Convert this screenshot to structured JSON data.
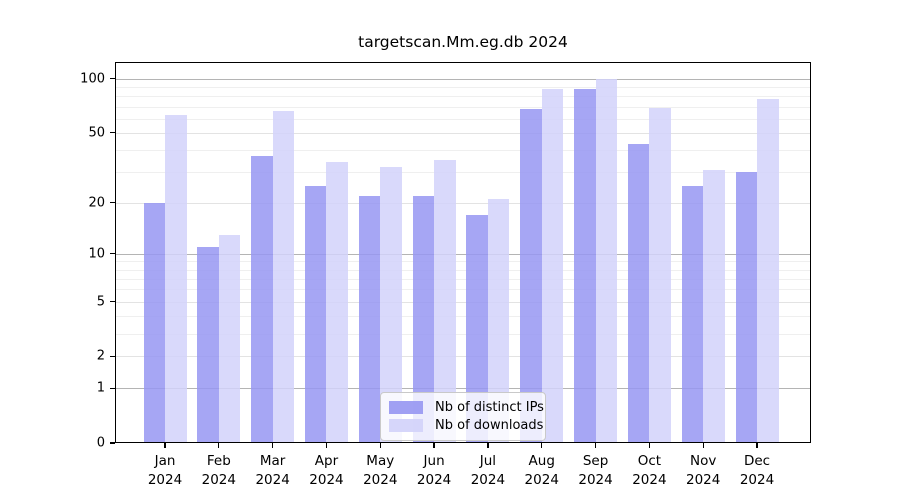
{
  "title": "targetscan.Mm.eg.db 2024",
  "chart_data": {
    "type": "bar",
    "title": "targetscan.Mm.eg.db 2024",
    "categories": [
      "Jan",
      "Feb",
      "Mar",
      "Apr",
      "May",
      "Jun",
      "Jul",
      "Aug",
      "Sep",
      "Oct",
      "Nov",
      "Dec"
    ],
    "year": "2024",
    "series": [
      {
        "name": "Nb of distinct IPs",
        "color": "#9696f2",
        "values": [
          20,
          11,
          37,
          25,
          22,
          22,
          17,
          68,
          88,
          43,
          25,
          30
        ]
      },
      {
        "name": "Nb of downloads",
        "color": "#d2d2fa",
        "values": [
          63,
          13,
          66,
          34,
          32,
          35,
          21,
          88,
          100,
          69,
          31,
          77
        ]
      }
    ],
    "y_axis": {
      "scale": "log1p",
      "ticks": [
        0,
        1,
        2,
        5,
        10,
        20,
        50,
        100
      ],
      "minor_ticks": [
        3,
        4,
        6,
        7,
        8,
        9,
        30,
        40,
        60,
        70,
        80,
        90
      ],
      "top_value": 124
    },
    "xlabel": "",
    "ylabel": "",
    "grid": true,
    "legend_position": "bottom-center",
    "colors": {
      "ips_bar_effective": "#a5a5f4",
      "downloads_bar_effective": "#d8d8fa",
      "grid_major": "#b4b4b4",
      "grid_minor": "#efefef",
      "frame": "#000000",
      "legend_border": "#c9c9c9"
    }
  }
}
